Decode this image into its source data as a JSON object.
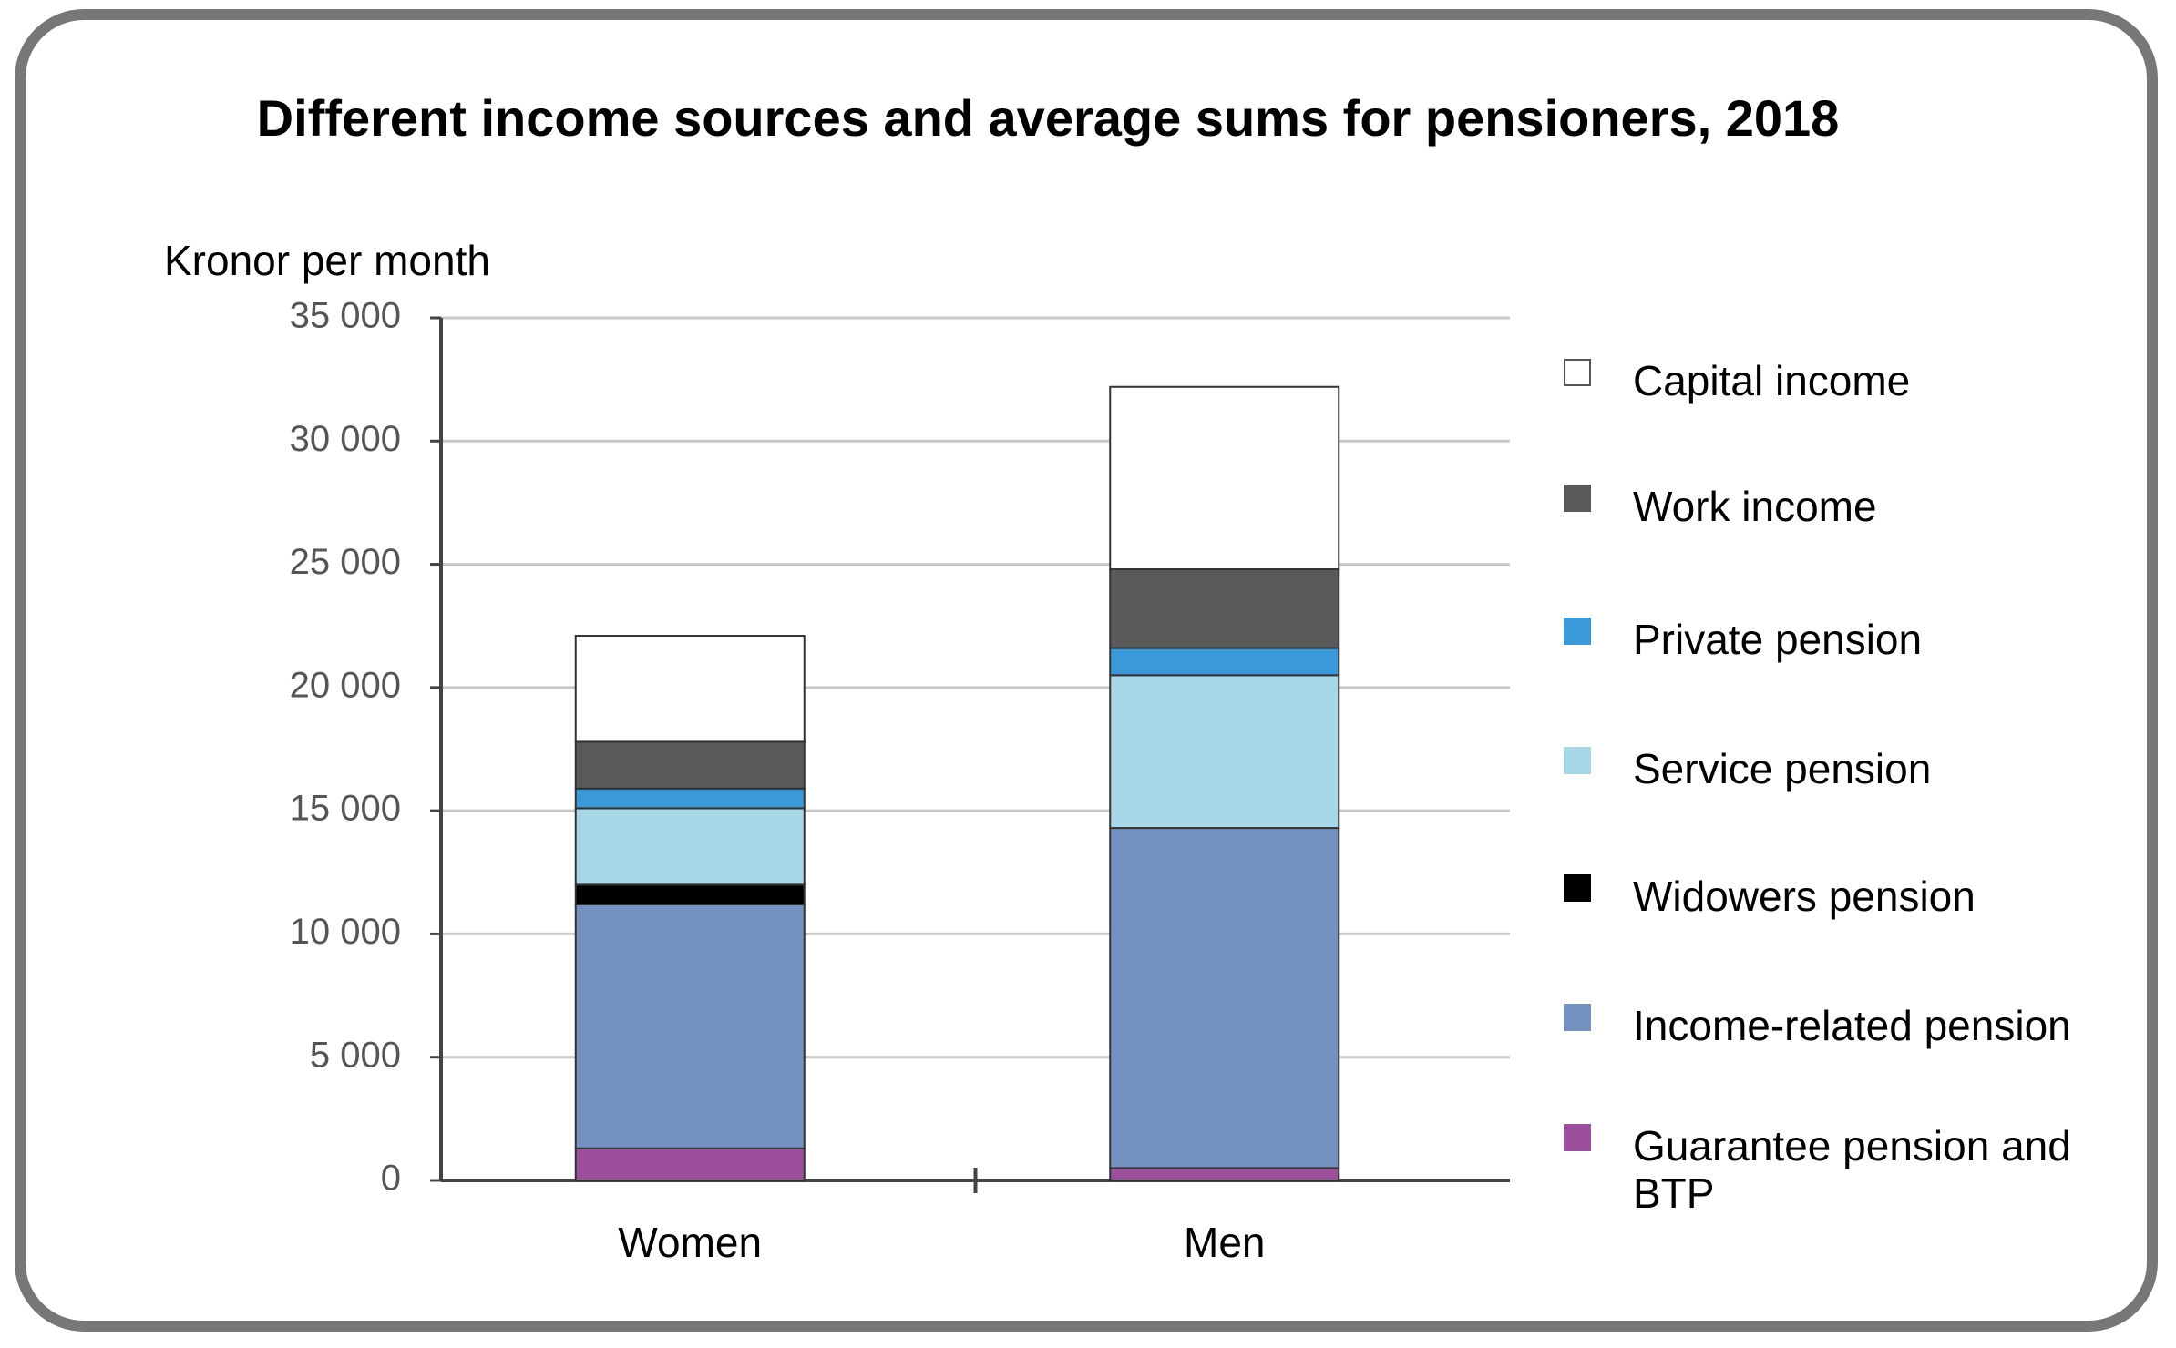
{
  "chart_data": {
    "type": "stacked_bar",
    "title": "Different income sources and average sums for pensioners, 2018",
    "y_label": "Kronor per month",
    "categories": [
      "Women",
      "Men"
    ],
    "series": [
      {
        "name": "Guarantee pension and BTP",
        "color": "#9b4f9c",
        "values": [
          1300,
          500
        ]
      },
      {
        "name": "Income-related pension",
        "color": "#7491c0",
        "values": [
          9900,
          13800
        ]
      },
      {
        "name": "Widowers pension",
        "color": "#000000",
        "values": [
          800,
          0
        ]
      },
      {
        "name": "Service pension",
        "color": "#a8d8e8",
        "values": [
          3100,
          6200
        ]
      },
      {
        "name": "Private pension",
        "color": "#3a9ad9",
        "values": [
          800,
          1100
        ]
      },
      {
        "name": "Work income",
        "color": "#595959",
        "values": [
          1900,
          3200
        ]
      },
      {
        "name": "Capital income",
        "color": "#ffffff",
        "values": [
          4300,
          7400
        ]
      }
    ],
    "ylim": [
      0,
      35000
    ],
    "yticks": [
      0,
      {
        "value": 5000,
        "label": "5 000"
      },
      {
        "value": 10000,
        "label": "10 000"
      },
      {
        "value": 15000,
        "label": "15 000"
      },
      {
        "value": 20000,
        "label": "20 000"
      },
      {
        "value": 25000,
        "label": "25 000"
      },
      {
        "value": 30000,
        "label": "30 000"
      },
      {
        "value": 35000,
        "label": "35 000"
      }
    ],
    "grid": true,
    "legend": "right"
  }
}
